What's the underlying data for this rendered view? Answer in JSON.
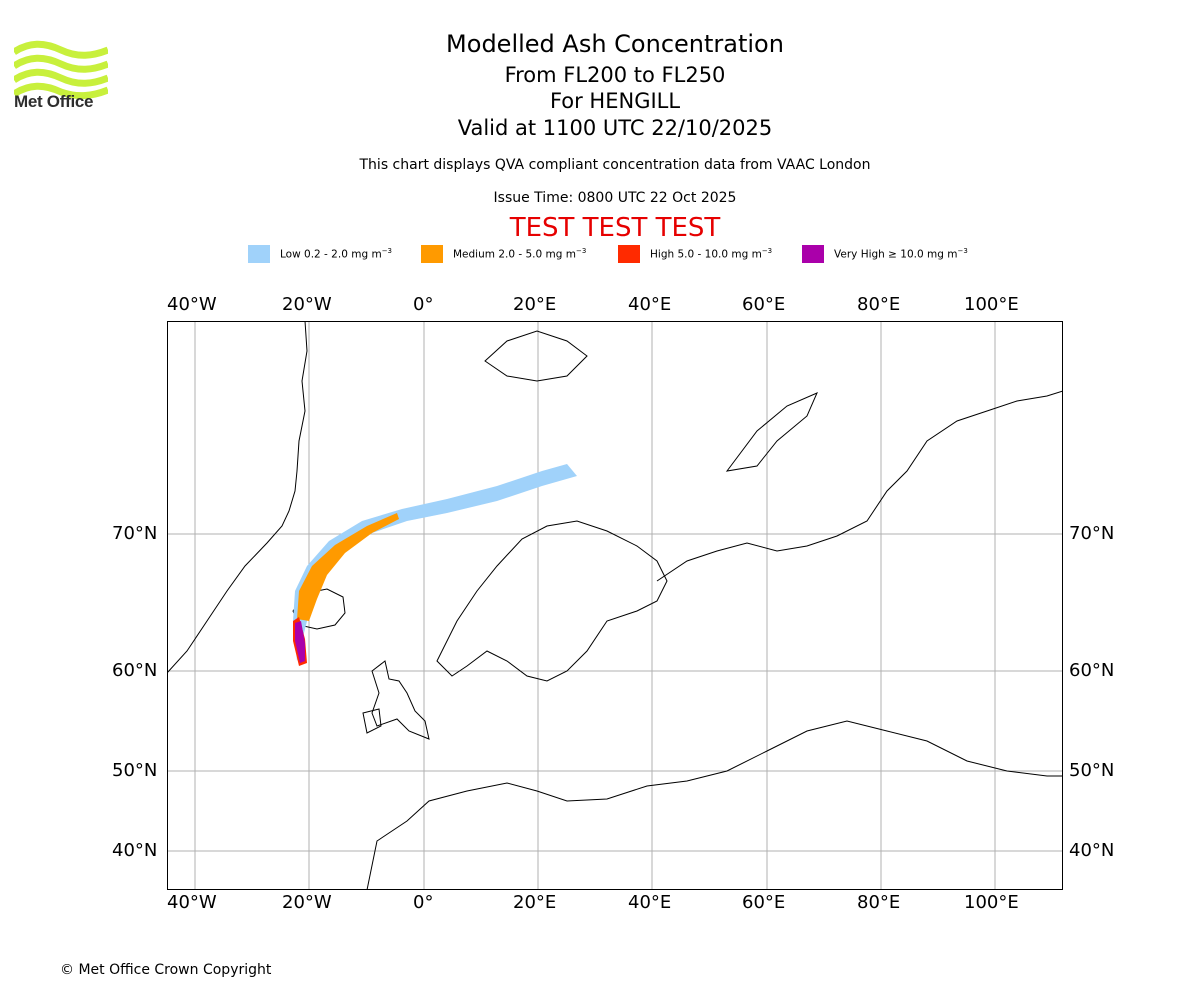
{
  "logo": {
    "text": "Met Office",
    "color": "#c8f03c"
  },
  "header": {
    "title": "Modelled Ash Concentration",
    "levels": "From FL200 to FL250",
    "volcano": "For HENGILL",
    "valid": "Valid at 1100 UTC 22/10/2025",
    "subtitle": "This chart displays QVA compliant concentration data from VAAC London",
    "issue_time": "Issue Time: 0800 UTC 22 Oct 2025",
    "test_banner": "TEST TEST TEST"
  },
  "legend": [
    {
      "label": "Low 0.2 - 2.0 mg m",
      "exp": "−3",
      "color": "#a0d2fa"
    },
    {
      "label": "Medium 2.0 - 5.0 mg m",
      "exp": "−3",
      "color": "#ff9a00"
    },
    {
      "label": "High 5.0 - 10.0 mg m",
      "exp": "−3",
      "color": "#ff2a00"
    },
    {
      "label": "Very High  ≥  10.0 mg m",
      "exp": "−3",
      "color": "#aa00aa"
    }
  ],
  "map": {
    "lon_labels": [
      "40°W",
      "20°W",
      "0°",
      "20°E",
      "40°E",
      "60°E",
      "80°E",
      "100°E"
    ],
    "lon_values": [
      -40,
      -20,
      0,
      20,
      40,
      60,
      80,
      100
    ],
    "lat_labels": [
      "70°N",
      "60°N",
      "50°N",
      "40°N"
    ],
    "lat_values": [
      70,
      60,
      50,
      40
    ]
  },
  "footer": {
    "copyright": "© Met Office Crown Copyright"
  }
}
